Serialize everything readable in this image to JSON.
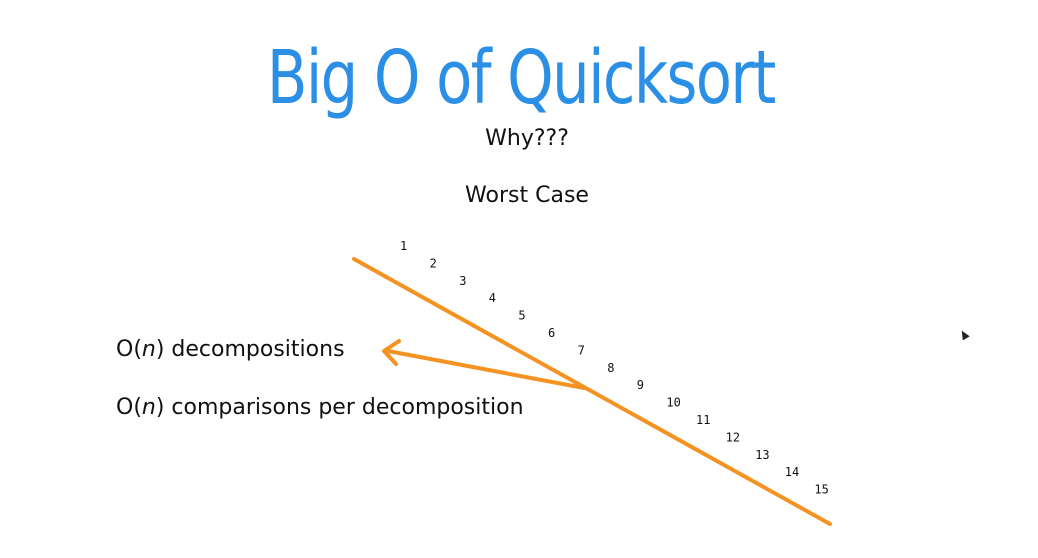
{
  "slide": {
    "title": "Big O of Quicksort",
    "subtitle": "Why???",
    "case_label": "Worst Case",
    "notes": [
      {
        "prefix": "O(",
        "var": "n",
        "suffix": ") decompositions"
      },
      {
        "prefix": "O(",
        "var": "n",
        "suffix": ") comparisons per decomposition"
      }
    ]
  },
  "sequence": [
    "1",
    "2",
    "3",
    "4",
    "5",
    "6",
    "7",
    "8",
    "9",
    "10",
    "11",
    "12",
    "13",
    "14",
    "15"
  ],
  "colors": {
    "title": "#2c8fe6",
    "arrow": "#f59322",
    "text": "#111111"
  }
}
